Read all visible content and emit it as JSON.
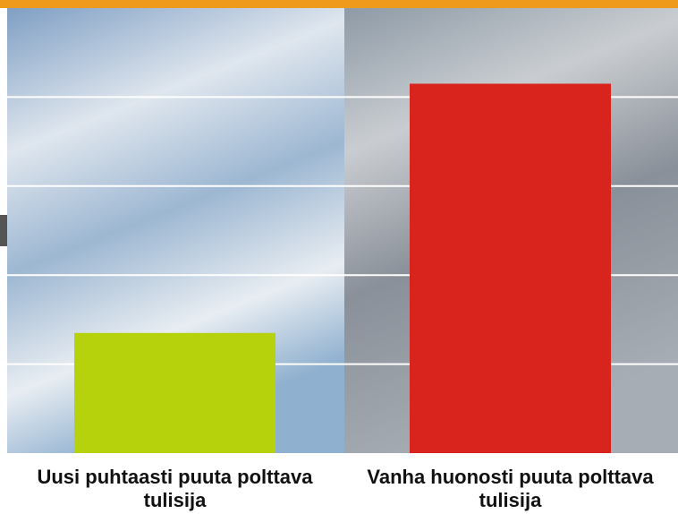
{
  "chart_data": {
    "type": "bar",
    "categories": [
      "Uusi puhtaasti puuta polttava tulisija",
      "Vanha huonosti puuta polttava tulisija"
    ],
    "values": [
      1.35,
      4.15
    ],
    "colors": [
      "#b5d20c",
      "#d8241c"
    ],
    "ylim": [
      0,
      5
    ],
    "yticks": [
      1,
      2,
      3,
      4
    ],
    "grid": true
  }
}
